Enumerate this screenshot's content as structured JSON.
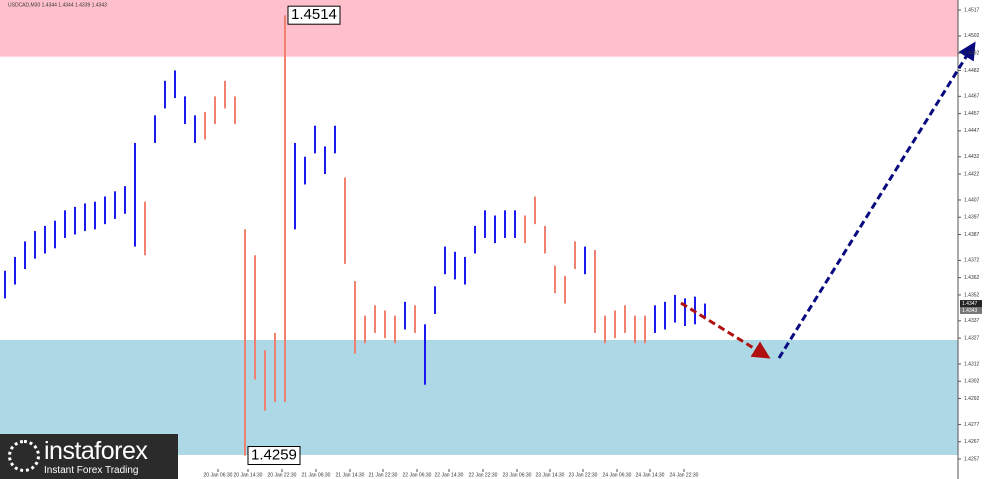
{
  "chart_data": {
    "type": "range",
    "subtitle": "USDCAD,M30 1.4344 1.4344 1.4339 1.4343",
    "high": [
      1.4366,
      1.4374,
      1.4383,
      1.4389,
      1.4392,
      1.4395,
      1.4401,
      1.4403,
      1.4405,
      1.4406,
      1.4409,
      1.4412,
      1.4415,
      1.444,
      1.4406,
      1.4456,
      1.4476,
      1.4482,
      1.4467,
      1.4456,
      1.4458,
      1.4467,
      1.4476,
      1.4467,
      1.439,
      1.4375,
      1.432,
      1.433,
      1.4514,
      1.444,
      1.4432,
      1.445,
      1.4438,
      1.445,
      1.442,
      1.436,
      1.434,
      1.4346,
      1.4343,
      1.434,
      1.4348,
      1.4346,
      1.4335,
      1.4357,
      1.438,
      1.4377,
      1.4374,
      1.4392,
      1.4401,
      1.4398,
      1.4401,
      1.4401,
      1.4398,
      1.4409,
      1.4392,
      1.4369,
      1.4363,
      1.4383,
      1.438,
      1.4378,
      1.434,
      1.4343,
      1.4346,
      1.434,
      1.434,
      1.4346,
      1.4348,
      1.4352,
      1.435,
      1.4351,
      1.4347
    ],
    "low": [
      1.435,
      1.4358,
      1.4367,
      1.4373,
      1.4376,
      1.4379,
      1.4385,
      1.4387,
      1.4389,
      1.439,
      1.4393,
      1.4396,
      1.4399,
      1.438,
      1.4375,
      1.444,
      1.446,
      1.4466,
      1.4451,
      1.444,
      1.4442,
      1.4451,
      1.446,
      1.4451,
      1.4259,
      1.4303,
      1.4285,
      1.429,
      1.429,
      1.439,
      1.4416,
      1.4434,
      1.4422,
      1.4434,
      1.437,
      1.4318,
      1.4324,
      1.433,
      1.4327,
      1.4324,
      1.4332,
      1.433,
      1.43,
      1.4341,
      1.4364,
      1.4361,
      1.4358,
      1.4376,
      1.4385,
      1.4382,
      1.4385,
      1.4385,
      1.4382,
      1.4393,
      1.4376,
      1.4353,
      1.4347,
      1.4367,
      1.4364,
      1.433,
      1.4324,
      1.4327,
      1.433,
      1.4324,
      1.4324,
      1.433,
      1.4332,
      1.4336,
      1.4334,
      1.4335,
      1.4339
    ],
    "colors": [
      "#1a1aee",
      "#1a1aee",
      "#1a1aee",
      "#1a1aee",
      "#1a1aee",
      "#1a1aee",
      "#1a1aee",
      "#1a1aee",
      "#1a1aee",
      "#1a1aee",
      "#1a1aee",
      "#1a1aee",
      "#1a1aee",
      "#1a1aee",
      "#f08070",
      "#1a1aee",
      "#1a1aee",
      "#1a1aee",
      "#1a1aee",
      "#1a1aee",
      "#f08070",
      "#f08070",
      "#f08070",
      "#f08070",
      "#f08070",
      "#f08070",
      "#f08070",
      "#f08070",
      "#f08070",
      "#1a1aee",
      "#1a1aee",
      "#1a1aee",
      "#1a1aee",
      "#1a1aee",
      "#f08070",
      "#f08070",
      "#f08070",
      "#f08070",
      "#f08070",
      "#f08070",
      "#1a1aee",
      "#f08070",
      "#1a1aee",
      "#1a1aee",
      "#1a1aee",
      "#1a1aee",
      "#1a1aee",
      "#1a1aee",
      "#1a1aee",
      "#1a1aee",
      "#1a1aee",
      "#1a1aee",
      "#f08070",
      "#f08070",
      "#f08070",
      "#f08070",
      "#f08070",
      "#f08070",
      "#1a1aee",
      "#f08070",
      "#f08070",
      "#f08070",
      "#f08070",
      "#f08070",
      "#f08070",
      "#1a1aee",
      "#1a1aee",
      "#1a1aee",
      "#1a1aee",
      "#1a1aee",
      "#1a1aee"
    ],
    "xlim": [
      -0.5,
      95.3
    ],
    "xticks": [
      {
        "value": 21.3,
        "label": "20 Jan 06:30"
      },
      {
        "value": 24.3,
        "label": "20 Jan 14:30"
      },
      {
        "value": 27.7,
        "label": "20 Jan 22:30"
      },
      {
        "value": 31.1,
        "label": "21 Jan 06:30"
      },
      {
        "value": 34.5,
        "label": "21 Jan 14:30"
      },
      {
        "value": 37.8,
        "label": "21 Jan 22:30"
      },
      {
        "value": 41.2,
        "label": "22 Jan 06:30"
      },
      {
        "value": 44.4,
        "label": "22 Jan 14:30"
      },
      {
        "value": 47.8,
        "label": "22 Jan 22:30"
      },
      {
        "value": 51.2,
        "label": "23 Jan 06:30"
      },
      {
        "value": 54.5,
        "label": "23 Jan 14:30"
      },
      {
        "value": 57.8,
        "label": "23 Jan 22:30"
      },
      {
        "value": 61.2,
        "label": "24 Jan 06:30"
      },
      {
        "value": 64.5,
        "label": "24 Jan 14:30"
      },
      {
        "value": 67.9,
        "label": "24 Jan 22:30"
      }
    ],
    "ylim": [
      1.42454,
      1.45228
    ],
    "yticks": [
      1.4517,
      1.4502,
      1.4492,
      1.4482,
      1.4467,
      1.4457,
      1.4447,
      1.4432,
      1.4422,
      1.4407,
      1.4397,
      1.4387,
      1.4372,
      1.4362,
      1.4352,
      1.4337,
      1.4327,
      1.4312,
      1.4302,
      1.4292,
      1.4277,
      1.4267,
      1.4257
    ],
    "zones": [
      {
        "color": "#ffc0cb",
        "range": [
          1.449,
          1.45228
        ]
      },
      {
        "color": "#add8e6",
        "range": [
          1.42593,
          1.43259
        ]
      }
    ],
    "annotations": [
      1.4514,
      1.4259
    ],
    "last_prices": [
      1.4347,
      1.4343
    ]
  },
  "logo": {
    "name": "instaforex",
    "tagline": "Instant Forex Trading"
  }
}
